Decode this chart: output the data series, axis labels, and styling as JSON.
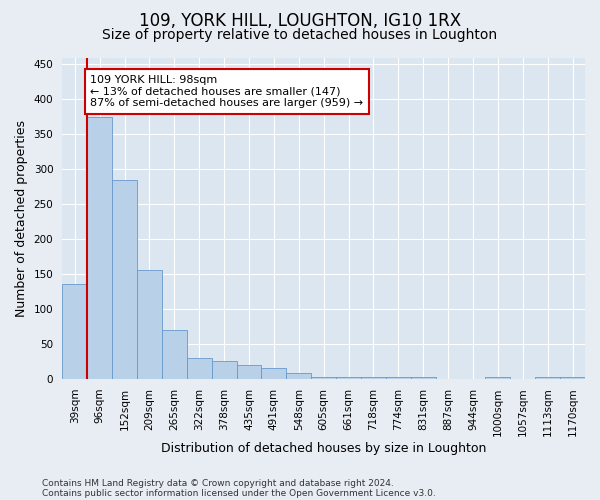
{
  "title": "109, YORK HILL, LOUGHTON, IG10 1RX",
  "subtitle": "Size of property relative to detached houses in Loughton",
  "xlabel": "Distribution of detached houses by size in Loughton",
  "ylabel": "Number of detached properties",
  "footer_line1": "Contains HM Land Registry data © Crown copyright and database right 2024.",
  "footer_line2": "Contains public sector information licensed under the Open Government Licence v3.0.",
  "categories": [
    "39sqm",
    "96sqm",
    "152sqm",
    "209sqm",
    "265sqm",
    "322sqm",
    "378sqm",
    "435sqm",
    "491sqm",
    "548sqm",
    "605sqm",
    "661sqm",
    "718sqm",
    "774sqm",
    "831sqm",
    "887sqm",
    "944sqm",
    "1000sqm",
    "1057sqm",
    "1113sqm",
    "1170sqm"
  ],
  "values": [
    135,
    375,
    285,
    155,
    70,
    30,
    26,
    20,
    15,
    8,
    3,
    3,
    2,
    2,
    2,
    0,
    0,
    2,
    0,
    2,
    2
  ],
  "bar_color": "#b8d0e8",
  "bar_edge_color": "#6699cc",
  "reference_line_color": "#cc0000",
  "annotation_text": "109 YORK HILL: 98sqm\n← 13% of detached houses are smaller (147)\n87% of semi-detached houses are larger (959) →",
  "annotation_box_color": "#ffffff",
  "annotation_box_edge_color": "#cc0000",
  "ylim": [
    0,
    460
  ],
  "yticks": [
    0,
    50,
    100,
    150,
    200,
    250,
    300,
    350,
    400,
    450
  ],
  "background_color": "#e8edf4",
  "plot_background_color": "#dce6f0",
  "grid_color": "#ffffff",
  "title_fontsize": 12,
  "subtitle_fontsize": 10,
  "tick_fontsize": 7.5,
  "label_fontsize": 9,
  "footer_fontsize": 6.5
}
